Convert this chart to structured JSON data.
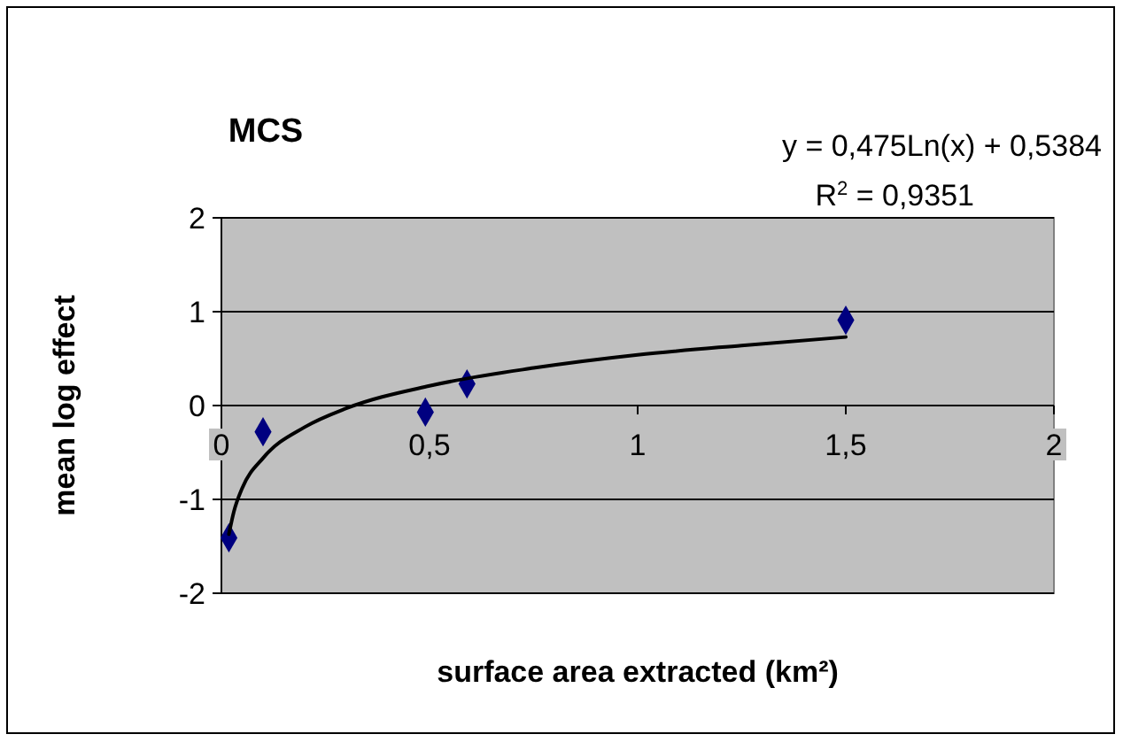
{
  "chart_data": {
    "type": "scatter",
    "title": "MCS",
    "xlabel": "surface area extracted (km²)",
    "ylabel": "mean log effect",
    "annotations": [
      "y = 0,475Ln(x) + 0,5384",
      "R$^{2}$ = 0,9351"
    ],
    "xlim": [
      0,
      2
    ],
    "ylim": [
      -2,
      2
    ],
    "xticks": [
      {
        "value": 0,
        "label": "0"
      },
      {
        "value": 0.5,
        "label": "0,5"
      },
      {
        "value": 1,
        "label": "1"
      },
      {
        "value": 1.5,
        "label": "1,5"
      },
      {
        "value": 2,
        "label": "2"
      }
    ],
    "yticks": [
      -2,
      -1,
      0,
      1,
      2
    ],
    "grid": "y",
    "series": [
      {
        "marker": "diamond",
        "color": "#000080",
        "x": [
          0.018,
          0.1,
          0.49,
          0.59,
          1.5
        ],
        "values": [
          -1.41,
          -0.28,
          -0.07,
          0.23,
          0.91
        ]
      },
      {
        "type": "line",
        "marker": "none",
        "line_style": "solid",
        "color": "#000000",
        "x": [
          0.018,
          0.03,
          0.05,
          0.1,
          0.2,
          0.3,
          0.5,
          0.75,
          1,
          1.25,
          1.5
        ],
        "values": [
          -1.37,
          -1.13,
          -0.88,
          -0.56,
          -0.23,
          -0.03,
          0.21,
          0.4,
          0.54,
          0.64,
          0.73
        ]
      }
    ]
  }
}
